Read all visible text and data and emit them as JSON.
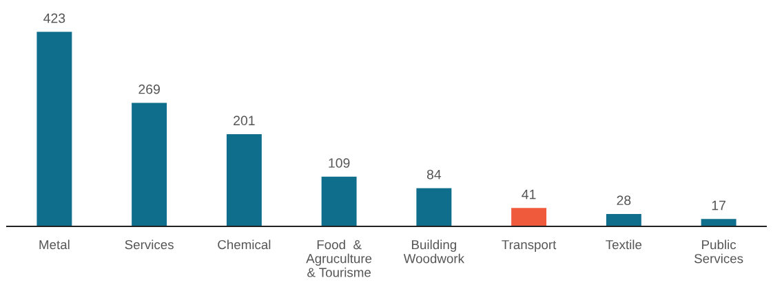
{
  "chart_data": {
    "type": "bar",
    "categories": [
      "Metal",
      "Services",
      "Chemical",
      "Food  &\nAgruculture\n& Tourisme",
      "Building\nWoodwork",
      "Transport",
      "Textile",
      "Public\nServices"
    ],
    "values": [
      423,
      269,
      201,
      109,
      84,
      41,
      28,
      17
    ],
    "colors": [
      "#0e6e8c",
      "#0e6e8c",
      "#0e6e8c",
      "#0e6e8c",
      "#0e6e8c",
      "#f05a3c",
      "#0e6e8c",
      "#0e6e8c"
    ],
    "data_labels": true,
    "tick_labels": "x",
    "grid": false,
    "legend": false
  }
}
